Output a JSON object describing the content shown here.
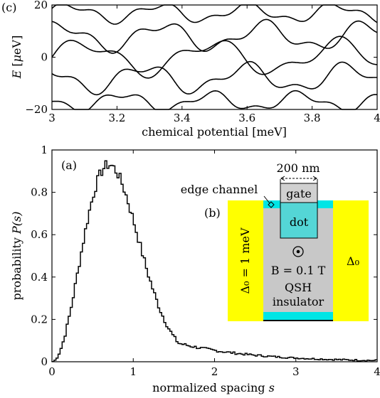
{
  "chart_data": [
    {
      "panel": "(c)",
      "type": "line",
      "xlabel": "chemical potential [meV]",
      "ylabel_symbol": "E",
      "ylabel_mu": "μ",
      "ylabel_unit": "eV",
      "xlim": [
        3,
        4
      ],
      "ylim": [
        -20,
        20
      ],
      "xticks": [
        "3",
        "3.2",
        "3.4",
        "3.6",
        "3.8",
        "4"
      ],
      "yticks": [
        "−20",
        "0",
        "20"
      ],
      "bands": [
        {
          "base": 17,
          "amp": 3.0,
          "freq": 23,
          "phase": 0.3
        },
        {
          "base": 8,
          "amp": 4.5,
          "freq": 20,
          "phase": 1.1
        },
        {
          "base": 0,
          "amp": 5.5,
          "freq": 16,
          "phase": 0.0
        },
        {
          "base": -8,
          "amp": 4.5,
          "freq": 20,
          "phase": 2.2
        },
        {
          "base": -17,
          "amp": 3.0,
          "freq": 23,
          "phase": 2.9
        }
      ]
    },
    {
      "panel": "(a)",
      "type": "histogram",
      "xlabel_text": "normalized spacing ",
      "xlabel_var": "s",
      "ylabel_text": "probability ",
      "ylabel_var": "P(s)",
      "xlim": [
        0,
        4
      ],
      "ylim": [
        0,
        1
      ],
      "xticks": [
        "0",
        "1",
        "2",
        "3",
        "4"
      ],
      "yticks": [
        "0",
        "0.2",
        "0.4",
        "0.6",
        "0.8",
        "1"
      ],
      "bin_width": 0.025,
      "envelope_peak_x": 0.7,
      "envelope_peak_y": 0.93
    }
  ],
  "inset": {
    "label_b": "(b)",
    "dimension": "200 nm",
    "edge_channel": "edge channel",
    "gate": "gate",
    "dot": "dot",
    "field": "B = 0.1 T",
    "qsh1": "QSH",
    "qsh2": "insulator",
    "delta_left": "Δ₀ = 1 meV",
    "delta_right": "Δ₀",
    "colors": {
      "superconductor": "#ffff00",
      "insulator": "#c8c8c8",
      "edge": "#00e5e5",
      "dot": "#54d6d6",
      "gate": "#d0d0d0"
    }
  }
}
